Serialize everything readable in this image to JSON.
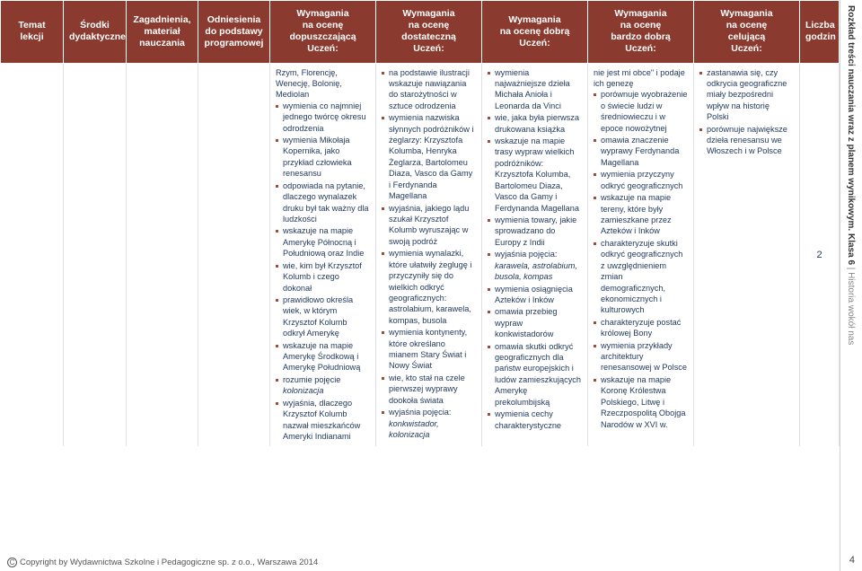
{
  "headers": {
    "h0": "Temat lekcji",
    "h1": "Środki\ndydaktyczne",
    "h2": "Zagadnienia,\nmateriał\nnauczania",
    "h3": "Odniesienia\ndo podstawy\nprogramowej",
    "h4": "Wymagania\nna ocenę\ndopuszczającą\nUczeń:",
    "h5": "Wymagania\nna ocenę\ndostateczną\nUczeń:",
    "h6": "Wymagania\nna ocenę dobrą\nUczeń:",
    "h7": "Wymagania\nna ocenę\nbardzo dobrą\nUczeń:",
    "h8": "Wymagania\nna ocenę\ncelującą\nUczeń:",
    "h9": "Liczba\ngodzin"
  },
  "col4": {
    "lead": "Rzym, Florencję, Wenecję, Bolonię, Mediolan",
    "items": [
      "wymienia co najmniej jednego twórcę okresu odrodzenia",
      "wymienia Mikołaja Kopernika, jako przykład człowieka renesansu",
      "odpowiada na pytanie, dlaczego wynalazek druku był tak ważny dla ludzkości",
      "wskazuje na mapie Amerykę Północną i Południową oraz Indie",
      "wie, kim był Krzysztof Kolumb i czego dokonał",
      "prawidłowo określa wiek, w którym Krzysztof Kolumb odkrył Amerykę",
      "wskazuje na mapie Amerykę Środkową i Amerykę Południową",
      "rozumie pojęcie <span class=\"italic\">kolonizacja</span>",
      "wyjaśnia, dlaczego Krzysztof Kolumb nazwał mieszkańców Ameryki Indianami"
    ]
  },
  "col5": {
    "items": [
      "na podstawie ilustracji wskazuje nawiązania do starożytności w sztuce odrodzenia",
      "wymienia nazwiska słynnych podróżników i żeglarzy: Krzysztofa Kolumba, Henryka Żeglarza, Bartolomeu Diaza, Vasco da Gamy i Ferdynanda Magellana",
      "wyjaśnia, jakiego lądu szukał Krzysztof Kolumb wyruszając w swoją podróż",
      "wymienia wynalazki, które ułatwiły żeglugę i przyczyniły się do wielkich odkryć geograficznych: astrolabium, karawela, kompas, busola",
      "wymienia kontynenty, które określano mianem Stary Świat i Nowy Świat",
      "wie, kto stał na czele pierwszej wyprawy dookoła świata",
      "wyjaśnia pojęcia: <span class=\"italic\">konkwistador, kolonizacja</span>"
    ]
  },
  "col6": {
    "items": [
      "wymienia najważniejsze dzieła Michała Anioła i Leonarda da Vinci",
      "wie, jaka była pierwsza drukowana książka",
      "wskazuje na mapie trasy wypraw wielkich podróżników: Krzysztofa Kolumba, Bartolomeu Diaza, Vasco da Gamy i Ferdynanda Magellana",
      "wymienia towary, jakie sprowadzano do Europy z Indii",
      "wyjaśnia pojęcia: <span class=\"italic\">karawela, astrolabium, busola, kompas</span>",
      "wymienia osiągnięcia Azteków i Inków",
      "omawia przebieg wypraw konkwistadorów",
      "omawia skutki odkryć geograficznych dla państw europejskich i ludów zamieszkujących Amerykę prekolumbijską",
      "wymienia cechy charakterystyczne"
    ]
  },
  "col7": {
    "lead": "nie jest mi obce\" i podaje ich genezę",
    "items": [
      "porównuje wyobrażenie o świecie ludzi w średniowieczu i w epoce nowożytnej",
      "omawia znaczenie wyprawy Ferdynanda Magellana",
      "wymienia przyczyny odkryć geograficznych",
      "wskazuje na mapie tereny, które były zamieszkane przez Azteków i Inków",
      "charakteryzuje skutki odkryć geograficznych z uwzględnieniem zmian demograficznych, ekonomicznych i kulturowych",
      "charakteryzuje postać królowej Bony",
      "wymienia przykłady architektury renesansowej w Polsce",
      "wskazuje na mapie Koronę Królestwa Polskiego, Litwę i Rzeczpospolitą Obojga Narodów w XVI w."
    ]
  },
  "col8": {
    "items": [
      "zastanawia się, czy odkrycia geograficzne miały bezpośredni wpływ na historię Polski",
      "porównuje największe dzieła renesansu we Włoszech i w Polsce"
    ]
  },
  "hours": "2",
  "side": {
    "line1a": "Rozkład treści nauczania wraz z planem wynikowym.",
    "line1b": " Klasa 6",
    "sep": " | ",
    "line2": "Historia wokół nas"
  },
  "pageNum": "4",
  "footer": "Copyright by Wydawnictwa Szkolne i Pedagogiczne sp. z o.o., Warszawa 2014"
}
